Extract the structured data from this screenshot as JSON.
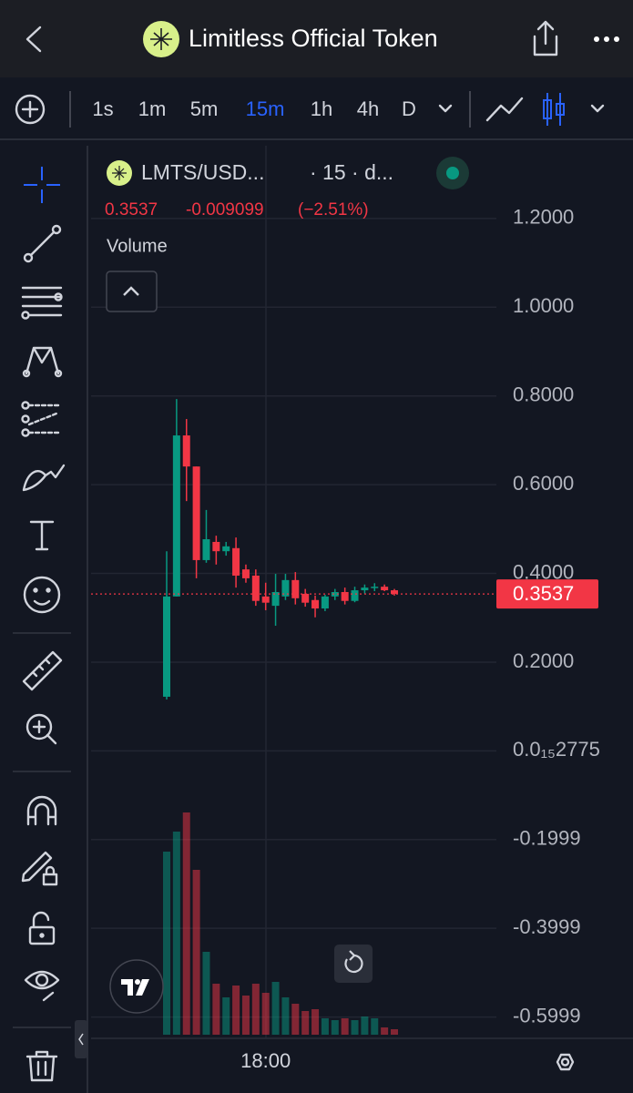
{
  "header": {
    "title": "Limitless Official Token"
  },
  "intervals": [
    "1s",
    "1m",
    "5m",
    "15m",
    "1h",
    "4h",
    "D"
  ],
  "active_interval": "15m",
  "chart_data": {
    "type": "candlestick",
    "symbol": "LMTS/USD...",
    "info": "· 15 · d...",
    "last": 0.3537,
    "change": -0.009099,
    "change_pct": "(−2.51%)",
    "volume_label": "Volume",
    "categories": [
      null,
      null,
      null,
      null,
      null,
      null,
      null,
      null,
      null,
      null,
      "18:00",
      null,
      null,
      null,
      null,
      null,
      null,
      null,
      null,
      null,
      null,
      null,
      null,
      null
    ],
    "open": [
      0.122,
      0.348,
      0.711,
      0.641,
      0.43,
      0.471,
      0.45,
      0.457,
      0.409,
      0.395,
      0.348,
      0.327,
      0.348,
      0.385,
      0.354,
      0.34,
      0.321,
      0.348,
      0.358,
      0.338,
      0.362,
      0.368,
      0.37,
      0.362
    ],
    "high": [
      0.45,
      0.793,
      0.748,
      0.641,
      0.543,
      0.485,
      0.471,
      0.481,
      0.42,
      0.409,
      0.379,
      0.399,
      0.399,
      0.403,
      0.365,
      0.35,
      0.352,
      0.365,
      0.368,
      0.37,
      0.375,
      0.378,
      0.375,
      0.365
    ],
    "low": [
      0.116,
      0.348,
      0.563,
      0.389,
      0.424,
      0.42,
      0.44,
      0.368,
      0.379,
      0.327,
      0.317,
      0.282,
      0.34,
      0.33,
      0.325,
      0.301,
      0.315,
      0.34,
      0.33,
      0.335,
      0.355,
      0.36,
      0.36,
      0.35
    ],
    "close": [
      0.348,
      0.711,
      0.641,
      0.43,
      0.477,
      0.45,
      0.461,
      0.395,
      0.389,
      0.338,
      0.334,
      0.358,
      0.385,
      0.344,
      0.334,
      0.321,
      0.348,
      0.358,
      0.338,
      0.362,
      0.368,
      0.37,
      0.362,
      0.3537
    ],
    "volume": [
      201,
      223,
      244,
      181,
      91,
      56,
      41,
      54,
      43,
      56,
      46,
      58,
      41,
      34,
      26,
      28,
      18,
      16,
      18,
      16,
      20,
      18,
      8,
      6
    ],
    "up_color": "#089981",
    "down_color": "#f23645",
    "ylim": [
      -0.648,
      1.364
    ],
    "yticks": [
      {
        "value": 1.2,
        "label": "1.2000"
      },
      {
        "value": 1.0,
        "label": "1.0000"
      },
      {
        "value": 0.8,
        "label": "0.8000"
      },
      {
        "value": 0.6,
        "label": "0.6000"
      },
      {
        "value": 0.4,
        "label": "0.4000"
      },
      {
        "value": 0.2,
        "label": "0.2000"
      },
      {
        "value": 2.775e-16,
        "label": "0.0₁₅2775"
      },
      -0.1999,
      -0.3999,
      -0.5999
    ],
    "grid": true
  }
}
